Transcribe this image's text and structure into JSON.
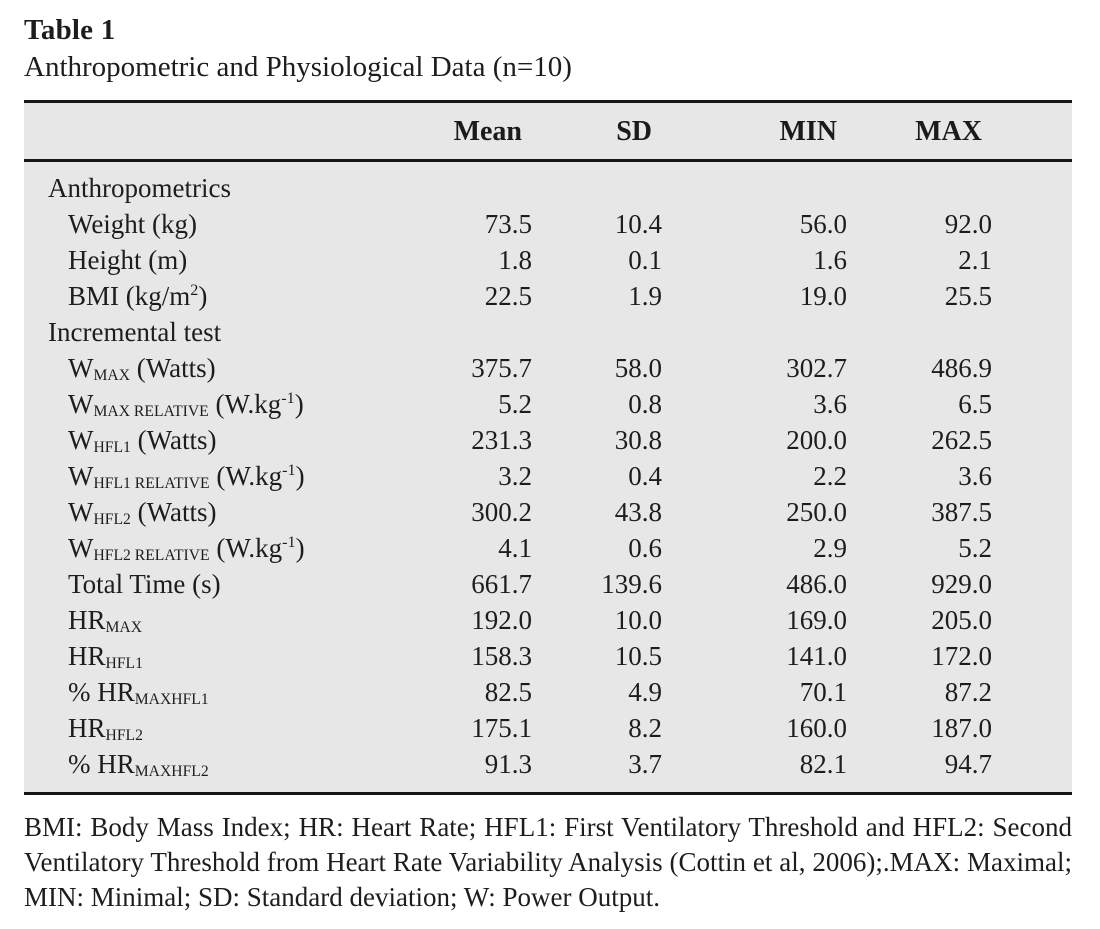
{
  "page": {
    "title": "Table 1",
    "subtitle": "Anthropometric and Physiological Data (n=10)"
  },
  "table": {
    "columns": [
      "Mean",
      "SD",
      "MIN",
      "MAX"
    ],
    "rows": [
      {
        "type": "section",
        "label": [
          {
            "t": "Anthropometrics"
          }
        ]
      },
      {
        "type": "data",
        "label": [
          {
            "t": "Weight (kg)"
          }
        ],
        "values": [
          "73.5",
          "10.4",
          "56.0",
          "92.0"
        ]
      },
      {
        "type": "data",
        "label": [
          {
            "t": "Height (m)"
          }
        ],
        "values": [
          "1.8",
          "0.1",
          "1.6",
          "2.1"
        ]
      },
      {
        "type": "data",
        "label": [
          {
            "t": "BMI (kg/m"
          },
          {
            "sup": "2"
          },
          {
            "t": ")"
          }
        ],
        "values": [
          "22.5",
          "1.9",
          "19.0",
          "25.5"
        ]
      },
      {
        "type": "section",
        "label": [
          {
            "t": "Incremental test"
          }
        ]
      },
      {
        "type": "data",
        "label": [
          {
            "t": "W"
          },
          {
            "sub": "MAX"
          },
          {
            "t": " (Watts)"
          }
        ],
        "values": [
          "375.7",
          "58.0",
          "302.7",
          "486.9"
        ]
      },
      {
        "type": "data",
        "label": [
          {
            "t": "W"
          },
          {
            "sub": "MAX RELATIVE"
          },
          {
            "t": " (W.kg"
          },
          {
            "sup": "-1"
          },
          {
            "t": ")"
          }
        ],
        "values": [
          "5.2",
          "0.8",
          "3.6",
          "6.5"
        ]
      },
      {
        "type": "data",
        "label": [
          {
            "t": "W"
          },
          {
            "sub": "HFL1"
          },
          {
            "t": " (Watts)"
          }
        ],
        "values": [
          "231.3",
          "30.8",
          "200.0",
          "262.5"
        ]
      },
      {
        "type": "data",
        "label": [
          {
            "t": "W"
          },
          {
            "sub": "HFL1 RELATIVE"
          },
          {
            "t": " (W.kg"
          },
          {
            "sup": "-1"
          },
          {
            "t": ")"
          }
        ],
        "values": [
          "3.2",
          "0.4",
          "2.2",
          "3.6"
        ]
      },
      {
        "type": "data",
        "label": [
          {
            "t": "W"
          },
          {
            "sub": "HFL2"
          },
          {
            "t": " (Watts)"
          }
        ],
        "values": [
          "300.2",
          "43.8",
          "250.0",
          "387.5"
        ]
      },
      {
        "type": "data",
        "label": [
          {
            "t": "W"
          },
          {
            "sub": "HFL2 RELATIVE"
          },
          {
            "t": " (W.kg"
          },
          {
            "sup": "-1"
          },
          {
            "t": ")"
          }
        ],
        "values": [
          "4.1",
          "0.6",
          "2.9",
          "5.2"
        ]
      },
      {
        "type": "data",
        "label": [
          {
            "t": "Total Time (s)"
          }
        ],
        "values": [
          "661.7",
          "139.6",
          "486.0",
          "929.0"
        ]
      },
      {
        "type": "data",
        "label": [
          {
            "t": "HR"
          },
          {
            "sub": "MAX"
          }
        ],
        "values": [
          "192.0",
          "10.0",
          "169.0",
          "205.0"
        ]
      },
      {
        "type": "data",
        "label": [
          {
            "t": "HR"
          },
          {
            "sub": "HFL1"
          }
        ],
        "values": [
          "158.3",
          "10.5",
          "141.0",
          "172.0"
        ]
      },
      {
        "type": "data",
        "label": [
          {
            "t": "% HR"
          },
          {
            "sub": "MAXHFL1"
          }
        ],
        "values": [
          "82.5",
          "4.9",
          "70.1",
          "87.2"
        ]
      },
      {
        "type": "data",
        "label": [
          {
            "t": "HR"
          },
          {
            "sub": "HFL2"
          }
        ],
        "values": [
          "175.1",
          "8.2",
          "160.0",
          "187.0"
        ]
      },
      {
        "type": "data",
        "label": [
          {
            "t": "% HR"
          },
          {
            "sub": "MAXHFL2"
          }
        ],
        "values": [
          "91.3",
          "3.7",
          "82.1",
          "94.7"
        ]
      }
    ]
  },
  "footnote": "BMI: Body Mass Index; HR: Heart Rate; HFL1: First Ventilatory Threshold and HFL2: Second Ventilatory Threshold from Heart Rate Variability Analysis (Cottin et al, 2006);.MAX: Maximal; MIN: Minimal; SD: Standard deviation; W: Power Output.",
  "colors": {
    "table_background": "#e7e7e7",
    "rule": "#161616",
    "text": "#1d1d1f",
    "page_background": "#ffffff"
  }
}
